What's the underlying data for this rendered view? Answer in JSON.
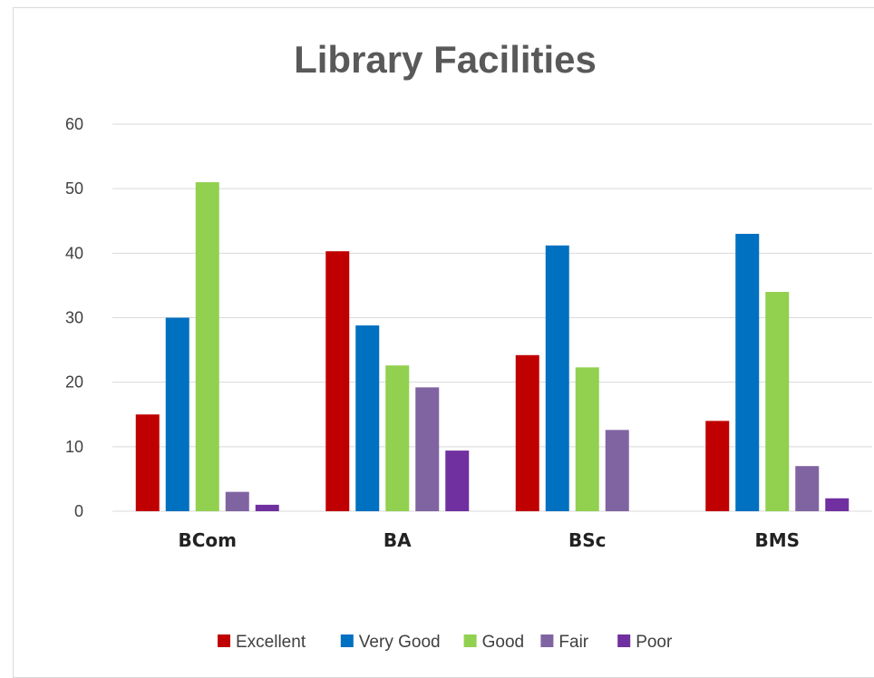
{
  "chart_data": {
    "type": "bar",
    "title": "Library Facilities",
    "xlabel": "",
    "ylabel": "",
    "categories": [
      "BCom",
      "BA",
      "BSc",
      "BMS"
    ],
    "ylim": [
      0,
      60
    ],
    "yticks": [
      0,
      10,
      20,
      30,
      40,
      50,
      60
    ],
    "grid": true,
    "legend_position": "bottom",
    "series": [
      {
        "name": "Excellent",
        "color": "#c00000",
        "values": [
          15,
          40.3,
          24.2,
          14
        ]
      },
      {
        "name": "Very Good",
        "color": "#0070c0",
        "values": [
          30,
          28.8,
          41.2,
          43
        ]
      },
      {
        "name": "Good",
        "color": "#92d050",
        "values": [
          51,
          22.6,
          22.3,
          34
        ]
      },
      {
        "name": "Fair",
        "color": "#8064a2",
        "values": [
          3,
          19.2,
          12.6,
          7
        ]
      },
      {
        "name": "Poor",
        "color": "#7030a0",
        "values": [
          1,
          9.4,
          0,
          2
        ]
      }
    ]
  }
}
